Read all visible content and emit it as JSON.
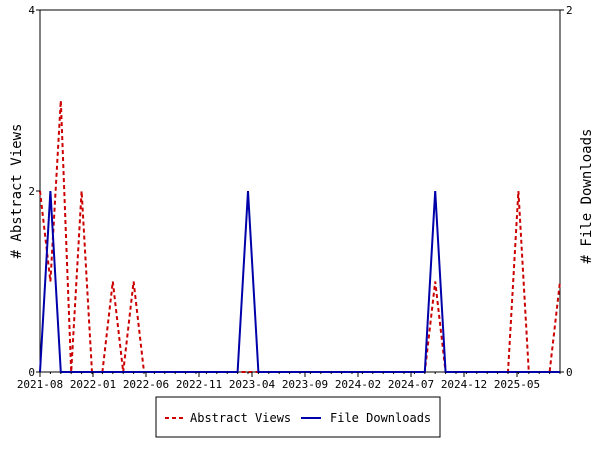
{
  "chart_data": {
    "type": "line",
    "x_tick_labels": [
      "2021-08",
      "2022-01",
      "2022-06",
      "2022-11",
      "2023-04",
      "2023-09",
      "2024-02",
      "2024-07",
      "2024-12",
      "2025-05"
    ],
    "y_left": {
      "label": "# Abstract Views",
      "range": [
        0,
        4
      ],
      "ticks": [
        "0",
        "2",
        "4"
      ]
    },
    "y_right": {
      "label": "# File Downloads",
      "range": [
        0,
        2
      ],
      "ticks": [
        "0",
        "2"
      ]
    },
    "grid": false,
    "legend_placement": "bottom",
    "series": [
      {
        "name": "Abstract Views",
        "axis": "left",
        "color": "#cc0000",
        "style": "dashed",
        "values": [
          2,
          1,
          3,
          0,
          2,
          0,
          0,
          1,
          0,
          1,
          0,
          0,
          0,
          0,
          0,
          0,
          0,
          0,
          0,
          0,
          0,
          0,
          0,
          0,
          0,
          0,
          0,
          0,
          0,
          0,
          0,
          0,
          0,
          0,
          0,
          0,
          0,
          0,
          1,
          0,
          0,
          0,
          0,
          0,
          0,
          0,
          2,
          0,
          0,
          0,
          1
        ]
      },
      {
        "name": "File Downloads",
        "axis": "right",
        "color": "#0000aa",
        "style": "solid",
        "values": [
          0,
          1,
          0,
          0,
          0,
          0,
          0,
          0,
          0,
          0,
          0,
          0,
          0,
          0,
          0,
          0,
          0,
          0,
          0,
          0,
          1,
          0,
          0,
          0,
          0,
          0,
          0,
          0,
          0,
          0,
          0,
          0,
          0,
          0,
          0,
          0,
          0,
          0,
          1,
          0,
          0,
          0,
          0,
          0,
          0,
          0,
          0,
          0,
          0,
          0,
          0
        ]
      }
    ]
  },
  "legend": {
    "items": [
      {
        "label": "Abstract Views",
        "color": "#cc0000",
        "style": "dashed"
      },
      {
        "label": "File Downloads",
        "color": "#0000aa",
        "style": "solid"
      }
    ]
  }
}
